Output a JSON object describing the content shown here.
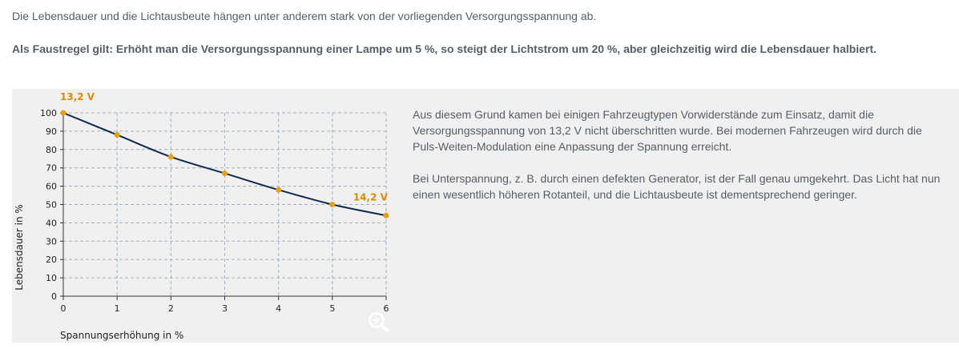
{
  "intro": "Die Lebensdauer und die Lichtausbeute hängen unter anderem stark von der vorliegenden Versorgungsspannung ab.",
  "rule": "Als Faustregel gilt: Erhöht man die Versorgungsspannung einer Lampe um 5 %, so steigt der Lichtstrom um 20 %, aber gleichzeitig wird die Lebensdauer halbiert.",
  "paragraphs": [
    "Aus diesem Grund kamen bei einigen Fahrzeugtypen Vorwiderstände zum Einsatz, damit die Versorgungsspannung von 13,2 V nicht überschritten wurde. Bei modernen Fahrzeugen wird durch die Puls-Weiten-Modulation eine Anpassung der Spannung erreicht.",
    "Bei Unterspannung, z. B. durch einen defekten Generator, ist der Fall genau umgekehrt. Das Licht hat nun einen wesentlich höheren Rotanteil, und die Lichtausbeute ist dementsprechend geringer."
  ],
  "zoom_icon": "magnifier-plus-icon",
  "chart_data": {
    "type": "line",
    "xlabel": "Spannungserhöhung in %",
    "ylabel": "Lebensdauer in %",
    "xlim": [
      0,
      6
    ],
    "ylim": [
      0,
      100
    ],
    "x_ticks": [
      0,
      1,
      2,
      3,
      4,
      5,
      6
    ],
    "y_ticks": [
      0,
      10,
      20,
      30,
      40,
      50,
      60,
      70,
      80,
      90,
      100
    ],
    "grid": true,
    "series": [
      {
        "x": [
          0,
          1,
          2,
          3,
          4,
          5,
          6
        ],
        "values": [
          100,
          88,
          76,
          67,
          58,
          50,
          44
        ]
      }
    ],
    "annotations": [
      {
        "text": "13,2 V",
        "x": 0,
        "y": 100
      },
      {
        "text": "14,2 V",
        "x": 5,
        "y": 50
      }
    ],
    "colors": {
      "line": "#0e2a4f",
      "marker": "#e8a00c",
      "annotation": "#d98c00",
      "grid": "#9fb0c2"
    }
  }
}
